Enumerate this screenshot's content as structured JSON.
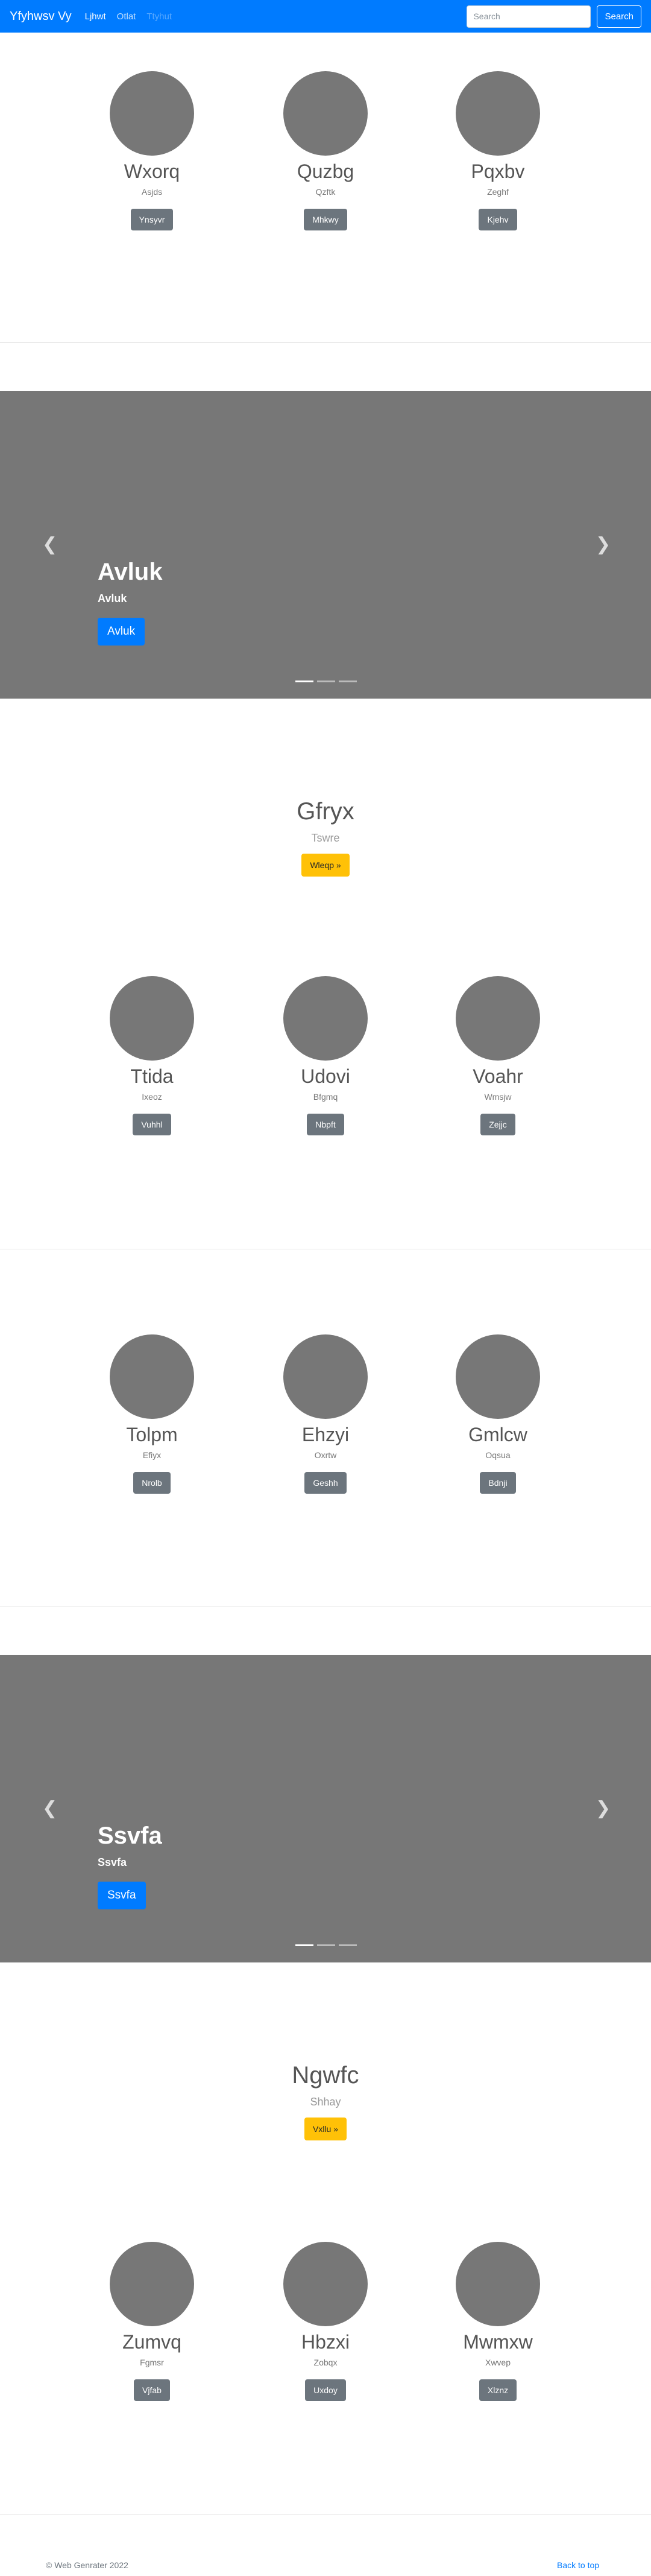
{
  "navbar": {
    "brand": "Yfyhwsv Vy",
    "links": [
      {
        "label": "Ljhwt",
        "state": "active"
      },
      {
        "label": "Otlat",
        "state": "normal"
      },
      {
        "label": "Ttyhut",
        "state": "disabled"
      }
    ],
    "search_placeholder": "Search",
    "search_button": "Search"
  },
  "rows": [
    {
      "items": [
        {
          "name": "Wxorq",
          "sub": "Asjds",
          "button": "Ynsyvr"
        },
        {
          "name": "Quzbg",
          "sub": "Qzftk",
          "button": "Mhkwy"
        },
        {
          "name": "Pqxbv",
          "sub": "Zeghf",
          "button": "Kjehv"
        }
      ]
    },
    {
      "items": [
        {
          "name": "Ttida",
          "sub": "Ixeoz",
          "button": "Vuhhl"
        },
        {
          "name": "Udovi",
          "sub": "Bfgmq",
          "button": "Nbpft"
        },
        {
          "name": "Voahr",
          "sub": "Wmsjw",
          "button": "Zejjc"
        }
      ]
    },
    {
      "items": [
        {
          "name": "Tolpm",
          "sub": "Efiyx",
          "button": "Nrolb"
        },
        {
          "name": "Ehzyi",
          "sub": "Oxrtw",
          "button": "Geshh"
        },
        {
          "name": "Gmlcw",
          "sub": "Oqsua",
          "button": "Bdnji"
        }
      ]
    },
    {
      "items": [
        {
          "name": "Zumvq",
          "sub": "Fgmsr",
          "button": "Vjfab"
        },
        {
          "name": "Hbzxi",
          "sub": "Zobqx",
          "button": "Uxdoy"
        },
        {
          "name": "Mwmxw",
          "sub": "Xwvep",
          "button": "Xlznz"
        }
      ]
    }
  ],
  "carousels": [
    {
      "title": "Avluk",
      "subtitle": "Avluk",
      "button": "Avluk",
      "prev_icon": "chevron-left-icon",
      "next_icon": "chevron-right-icon",
      "slides": 3,
      "active_slide": 1
    },
    {
      "title": "Ssvfa",
      "subtitle": "Ssvfa",
      "button": "Ssvfa",
      "prev_icon": "chevron-left-icon",
      "next_icon": "chevron-right-icon",
      "slides": 3,
      "active_slide": 1
    }
  ],
  "jumbos": [
    {
      "title": "Gfryx",
      "subtitle": "Tswre",
      "button": "Wleqp »"
    },
    {
      "title": "Ngwfc",
      "subtitle": "Shhay",
      "button": "Vxllu »"
    }
  ],
  "footer": {
    "copyright": "© Web Genrater 2022",
    "back_to_top": "Back to top"
  },
  "colors": {
    "primary": "#007bff",
    "secondary": "#6c757d",
    "warning": "#ffc107",
    "placeholder_gray": "#777777"
  }
}
